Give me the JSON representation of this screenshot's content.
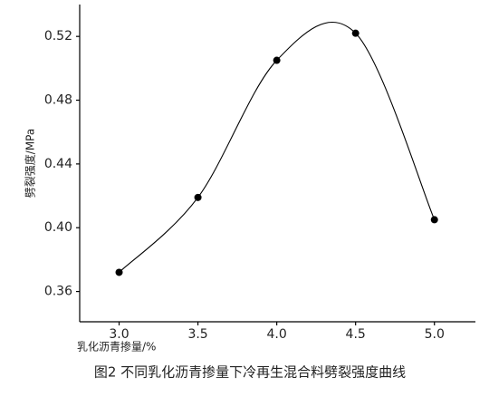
{
  "chart_data": {
    "type": "line",
    "caption": "图2 不同乳化沥青掺量下冷再生混合料劈裂强度曲线",
    "xlabel": "乳化沥青掺量/%",
    "ylabel": "劈裂强度/MPa",
    "x": [
      3.0,
      3.5,
      4.0,
      4.5,
      5.0
    ],
    "series": [
      {
        "name": "劈裂强度",
        "color": "#000000",
        "values": [
          0.372,
          0.419,
          0.505,
          0.522,
          0.405
        ]
      }
    ],
    "xlim": [
      2.75,
      5.26
    ],
    "ylim": [
      0.341,
      0.54
    ],
    "xticks": [
      {
        "value": 3.0,
        "label": "3.0"
      },
      3.5,
      {
        "value": 4.0,
        "label": "4.0"
      },
      4.5,
      {
        "value": 5.0,
        "label": "5.0"
      }
    ],
    "yticks": [
      0.36,
      {
        "value": 0.4,
        "label": "0.40"
      },
      0.44,
      0.48,
      0.52
    ],
    "grid": false,
    "smooth": true
  }
}
